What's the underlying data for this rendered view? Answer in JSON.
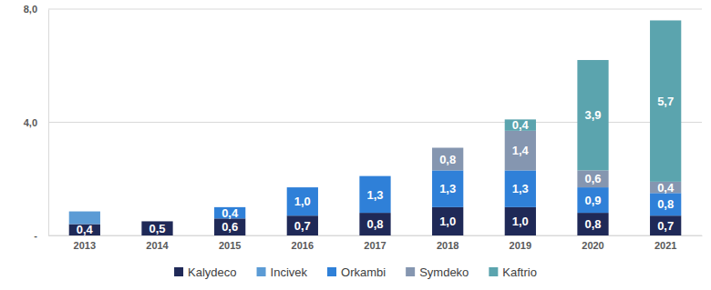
{
  "chart_data": {
    "type": "bar",
    "stacked": true,
    "data_labels": true,
    "grid": true,
    "legend": "bottom",
    "categories": [
      "2013",
      "2014",
      "2015",
      "2016",
      "2017",
      "2018",
      "2019",
      "2020",
      "2021"
    ],
    "ylim": [
      0,
      8
    ],
    "yticks": [
      {
        "value": 0,
        "label": "-"
      },
      {
        "value": 4,
        "label": "4,0"
      },
      {
        "value": 8,
        "label": "8,0"
      }
    ],
    "series": [
      {
        "name": "Kalydeco",
        "color": "#1f2957",
        "values": [
          0.4,
          0.5,
          0.6,
          0.7,
          0.8,
          1.0,
          1.0,
          0.8,
          0.7
        ],
        "value_labels": [
          "0,4",
          "0,5",
          "0,6",
          "0,7",
          "0,8",
          "1,0",
          "1,0",
          "0,8",
          "0,7"
        ]
      },
      {
        "name": "Incivek",
        "color": "#5b9bd5",
        "values": [
          0.45,
          null,
          null,
          null,
          null,
          null,
          null,
          null,
          null
        ],
        "value_labels": [
          null,
          null,
          null,
          null,
          null,
          null,
          null,
          null,
          null
        ]
      },
      {
        "name": "Orkambi",
        "color": "#2f80d8",
        "values": [
          null,
          null,
          0.4,
          1.0,
          1.3,
          1.3,
          1.3,
          0.9,
          0.8
        ],
        "value_labels": [
          null,
          null,
          "0,4",
          "1,0",
          "1,3",
          "1,3",
          "1,3",
          "0,9",
          "0,8"
        ]
      },
      {
        "name": "Symdeko",
        "color": "#8596b0",
        "values": [
          null,
          null,
          null,
          null,
          null,
          0.8,
          1.4,
          0.6,
          0.4
        ],
        "value_labels": [
          null,
          null,
          null,
          null,
          null,
          "0,8",
          "1,4",
          "0,6",
          "0,4"
        ]
      },
      {
        "name": "Kaftrio",
        "color": "#5ba4ae",
        "values": [
          null,
          null,
          null,
          null,
          null,
          null,
          0.4,
          3.9,
          5.7
        ],
        "value_labels": [
          null,
          null,
          null,
          null,
          null,
          null,
          "0,4",
          "3,9",
          "5,7"
        ]
      }
    ]
  }
}
